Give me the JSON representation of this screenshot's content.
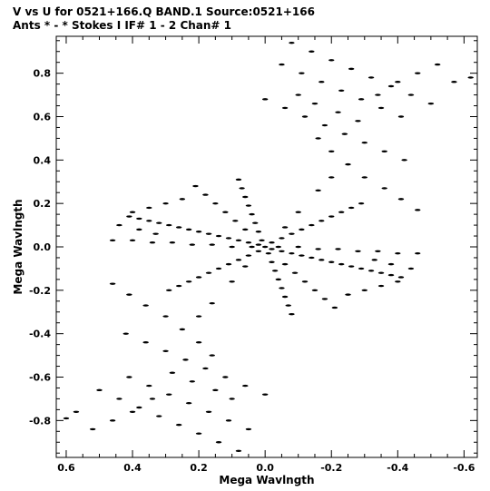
{
  "header": {
    "line1": "V vs U for 0521+166.Q BAND.1   Source:0521+166",
    "line2": "Ants * - *     Stokes I  IF# 1 - 2  Chan# 1"
  },
  "chart_data": {
    "type": "scatter",
    "title": "V vs U for 0521+166.Q BAND.1   Source:0521+166",
    "subtitle": "Ants * - *     Stokes I  IF# 1 - 2  Chan# 1",
    "xlabel": "Mega Wavlngth",
    "ylabel": "Mega Wavlngth",
    "xlim": [
      0.63,
      -0.64
    ],
    "ylim": [
      -0.97,
      0.97
    ],
    "x_reversed": true,
    "grid": false,
    "legend": "none",
    "xticks": [
      0.6,
      0.4,
      0.2,
      0.0,
      -0.2,
      -0.4,
      -0.6
    ],
    "xtick_labels": [
      "0.6",
      "0.4",
      "0.2",
      "0.0",
      "-0.2",
      "-0.4",
      "-0.6"
    ],
    "yticks": [
      0.8,
      0.6,
      0.4,
      0.2,
      0.0,
      -0.2,
      -0.4,
      -0.6,
      -0.8
    ],
    "ytick_labels": [
      "0.8",
      "0.6",
      "0.4",
      "0.2",
      "0.0",
      "-0.2",
      "-0.4",
      "-0.6",
      "-0.8"
    ],
    "series": [
      {
        "points": [
          [
            0.0,
            0.0
          ],
          [
            0.02,
            0.01
          ],
          [
            -0.02,
            -0.01
          ],
          [
            0.05,
            0.02
          ],
          [
            -0.05,
            -0.02
          ],
          [
            0.08,
            0.03
          ],
          [
            -0.08,
            -0.03
          ],
          [
            0.11,
            0.04
          ],
          [
            -0.11,
            -0.04
          ],
          [
            0.14,
            0.05
          ],
          [
            -0.14,
            -0.05
          ],
          [
            0.17,
            0.06
          ],
          [
            -0.17,
            -0.06
          ],
          [
            0.2,
            0.07
          ],
          [
            -0.2,
            -0.07
          ],
          [
            0.23,
            0.08
          ],
          [
            -0.23,
            -0.08
          ],
          [
            0.26,
            0.09
          ],
          [
            -0.26,
            -0.09
          ],
          [
            0.29,
            0.1
          ],
          [
            -0.29,
            -0.1
          ],
          [
            0.32,
            0.11
          ],
          [
            -0.32,
            -0.11
          ],
          [
            0.35,
            0.12
          ],
          [
            -0.35,
            -0.12
          ],
          [
            0.38,
            0.13
          ],
          [
            -0.38,
            -0.13
          ],
          [
            0.41,
            0.14
          ],
          [
            -0.41,
            -0.14
          ],
          [
            0.02,
            -0.02
          ],
          [
            -0.02,
            0.02
          ],
          [
            0.05,
            -0.04
          ],
          [
            -0.05,
            0.04
          ],
          [
            0.08,
            -0.06
          ],
          [
            -0.08,
            0.06
          ],
          [
            0.11,
            -0.08
          ],
          [
            -0.11,
            0.08
          ],
          [
            0.14,
            -0.1
          ],
          [
            -0.14,
            0.1
          ],
          [
            0.17,
            -0.12
          ],
          [
            -0.17,
            0.12
          ],
          [
            0.2,
            -0.14
          ],
          [
            -0.2,
            0.14
          ],
          [
            0.23,
            -0.16
          ],
          [
            -0.23,
            0.16
          ],
          [
            0.26,
            -0.18
          ],
          [
            -0.26,
            0.18
          ],
          [
            0.29,
            -0.2
          ],
          [
            -0.29,
            0.2
          ],
          [
            0.01,
            0.03
          ],
          [
            -0.01,
            -0.03
          ],
          [
            0.02,
            0.07
          ],
          [
            -0.02,
            -0.07
          ],
          [
            0.03,
            0.11
          ],
          [
            -0.03,
            -0.11
          ],
          [
            0.04,
            0.15
          ],
          [
            -0.04,
            -0.15
          ],
          [
            0.05,
            0.19
          ],
          [
            -0.05,
            -0.19
          ],
          [
            0.06,
            0.23
          ],
          [
            -0.06,
            -0.23
          ],
          [
            0.07,
            0.27
          ],
          [
            -0.07,
            -0.27
          ],
          [
            0.08,
            0.31
          ],
          [
            -0.08,
            -0.31
          ],
          [
            0.04,
            0.0
          ],
          [
            -0.04,
            0.0
          ],
          [
            0.1,
            0.0
          ],
          [
            -0.1,
            0.0
          ],
          [
            0.16,
            0.01
          ],
          [
            -0.16,
            -0.01
          ],
          [
            0.22,
            0.01
          ],
          [
            -0.22,
            -0.01
          ],
          [
            0.28,
            0.02
          ],
          [
            -0.28,
            -0.02
          ],
          [
            0.34,
            0.02
          ],
          [
            -0.34,
            -0.02
          ],
          [
            0.4,
            0.03
          ],
          [
            -0.4,
            -0.03
          ],
          [
            0.46,
            0.03
          ],
          [
            -0.46,
            -0.03
          ],
          [
            0.06,
            0.08
          ],
          [
            -0.06,
            -0.08
          ],
          [
            0.12,
            0.16
          ],
          [
            -0.12,
            -0.16
          ],
          [
            0.18,
            0.24
          ],
          [
            -0.18,
            -0.24
          ],
          [
            0.09,
            0.12
          ],
          [
            -0.09,
            -0.12
          ],
          [
            0.15,
            0.2
          ],
          [
            -0.15,
            -0.2
          ],
          [
            0.21,
            0.28
          ],
          [
            -0.21,
            -0.28
          ],
          [
            0.1,
            -0.16
          ],
          [
            -0.1,
            0.16
          ],
          [
            0.16,
            -0.26
          ],
          [
            -0.16,
            0.26
          ],
          [
            0.2,
            -0.32
          ],
          [
            -0.2,
            0.32
          ],
          [
            0.06,
            -0.09
          ],
          [
            -0.06,
            0.09
          ],
          [
            -0.08,
            0.94
          ],
          [
            -0.14,
            0.9
          ],
          [
            -0.2,
            0.86
          ],
          [
            -0.26,
            0.82
          ],
          [
            -0.32,
            0.78
          ],
          [
            -0.38,
            0.74
          ],
          [
            -0.44,
            0.7
          ],
          [
            -0.5,
            0.66
          ],
          [
            -0.05,
            0.84
          ],
          [
            -0.11,
            0.8
          ],
          [
            -0.17,
            0.76
          ],
          [
            -0.23,
            0.72
          ],
          [
            -0.29,
            0.68
          ],
          [
            -0.35,
            0.64
          ],
          [
            -0.41,
            0.6
          ],
          [
            0.0,
            0.68
          ],
          [
            -0.06,
            0.64
          ],
          [
            -0.12,
            0.6
          ],
          [
            -0.18,
            0.56
          ],
          [
            -0.24,
            0.52
          ],
          [
            -0.3,
            0.48
          ],
          [
            -0.36,
            0.44
          ],
          [
            -0.42,
            0.4
          ],
          [
            -0.1,
            0.7
          ],
          [
            -0.15,
            0.66
          ],
          [
            -0.22,
            0.62
          ],
          [
            -0.28,
            0.58
          ],
          [
            -0.34,
            0.7
          ],
          [
            -0.4,
            0.76
          ],
          [
            -0.46,
            0.8
          ],
          [
            -0.52,
            0.84
          ],
          [
            -0.57,
            0.76
          ],
          [
            -0.62,
            0.78
          ],
          [
            -0.16,
            0.5
          ],
          [
            -0.2,
            0.44
          ],
          [
            -0.25,
            0.38
          ],
          [
            -0.3,
            0.32
          ],
          [
            -0.36,
            0.27
          ],
          [
            -0.41,
            0.22
          ],
          [
            -0.46,
            0.17
          ],
          [
            0.08,
            -0.94
          ],
          [
            0.14,
            -0.9
          ],
          [
            0.2,
            -0.86
          ],
          [
            0.26,
            -0.82
          ],
          [
            0.32,
            -0.78
          ],
          [
            0.38,
            -0.74
          ],
          [
            0.44,
            -0.7
          ],
          [
            0.5,
            -0.66
          ],
          [
            0.05,
            -0.84
          ],
          [
            0.11,
            -0.8
          ],
          [
            0.17,
            -0.76
          ],
          [
            0.23,
            -0.72
          ],
          [
            0.29,
            -0.68
          ],
          [
            0.35,
            -0.64
          ],
          [
            0.41,
            -0.6
          ],
          [
            0.0,
            -0.68
          ],
          [
            0.06,
            -0.64
          ],
          [
            0.12,
            -0.6
          ],
          [
            0.18,
            -0.56
          ],
          [
            0.24,
            -0.52
          ],
          [
            0.3,
            -0.48
          ],
          [
            0.36,
            -0.44
          ],
          [
            0.42,
            -0.4
          ],
          [
            0.1,
            -0.7
          ],
          [
            0.15,
            -0.66
          ],
          [
            0.22,
            -0.62
          ],
          [
            0.28,
            -0.58
          ],
          [
            0.34,
            -0.7
          ],
          [
            0.4,
            -0.76
          ],
          [
            0.46,
            -0.8
          ],
          [
            0.52,
            -0.84
          ],
          [
            0.57,
            -0.76
          ],
          [
            0.6,
            -0.79
          ],
          [
            0.16,
            -0.5
          ],
          [
            0.2,
            -0.44
          ],
          [
            0.25,
            -0.38
          ],
          [
            0.3,
            -0.32
          ],
          [
            0.36,
            -0.27
          ],
          [
            0.41,
            -0.22
          ],
          [
            0.46,
            -0.17
          ],
          [
            0.25,
            0.22
          ],
          [
            0.3,
            0.2
          ],
          [
            0.35,
            0.18
          ],
          [
            0.4,
            0.16
          ],
          [
            0.44,
            0.1
          ],
          [
            0.38,
            0.08
          ],
          [
            0.33,
            0.06
          ],
          [
            -0.25,
            -0.22
          ],
          [
            -0.3,
            -0.2
          ],
          [
            -0.35,
            -0.18
          ],
          [
            -0.4,
            -0.16
          ],
          [
            -0.44,
            -0.1
          ],
          [
            -0.38,
            -0.08
          ],
          [
            -0.33,
            -0.06
          ]
        ]
      }
    ]
  }
}
